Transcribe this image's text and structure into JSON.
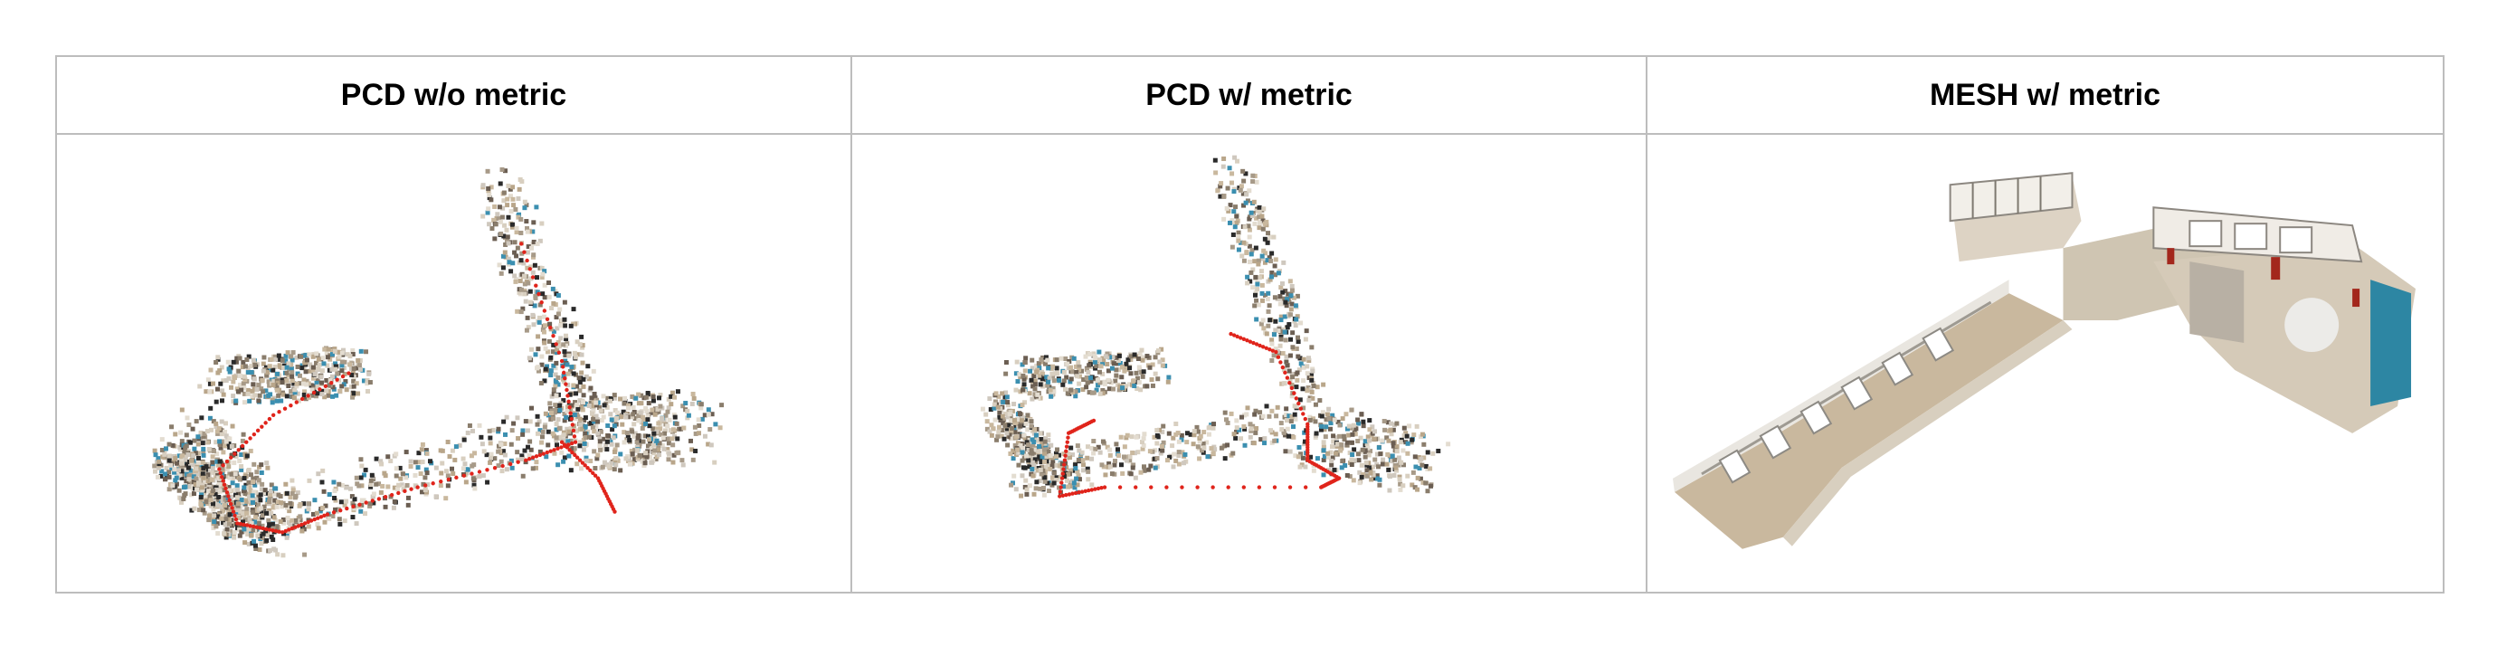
{
  "table": {
    "columns": [
      {
        "header": "PCD w/o metric",
        "image_icon": "point-cloud-without-metric"
      },
      {
        "header": "PCD w/ metric",
        "image_icon": "point-cloud-with-metric"
      },
      {
        "header": "MESH w/ metric",
        "image_icon": "mesh-with-metric"
      }
    ]
  },
  "colors": {
    "border": "#bdbdbd",
    "trajectory": "#e0241b",
    "floor": "#c9b89e",
    "wall": "#e9e6e0",
    "accent": "#3b8fb0"
  }
}
